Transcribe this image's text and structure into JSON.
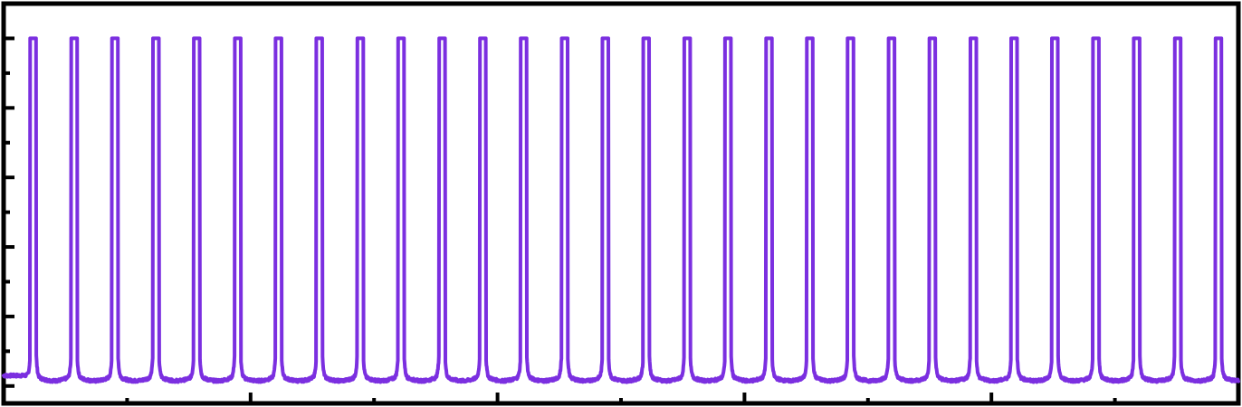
{
  "chart_data": {
    "type": "line",
    "title": "",
    "xlabel": "",
    "ylabel": "",
    "xlim": [
      0,
      10
    ],
    "ylim": [
      -0.05,
      1.1
    ],
    "grid": false,
    "legend": "none",
    "x_major_ticks": [
      1,
      2,
      3,
      4,
      5,
      6,
      7,
      8,
      9
    ],
    "x_minor_ticks": [],
    "y_major_ticks": [
      0,
      0.2,
      0.4,
      0.6,
      0.8,
      1.0
    ],
    "y_minor_ticks": [
      0.1,
      0.3,
      0.5,
      0.7,
      0.9
    ],
    "series": [
      {
        "color": "#7B2FE0",
        "pulse_train": {
          "count": 30,
          "first_center": 0.24,
          "period": 0.331,
          "baseline": 0.03,
          "peak": 1.0,
          "pulse_width": 0.05
        }
      }
    ],
    "colors": {
      "axis": "#000000",
      "background": "#ffffff",
      "line": "#7B2FE0"
    }
  }
}
